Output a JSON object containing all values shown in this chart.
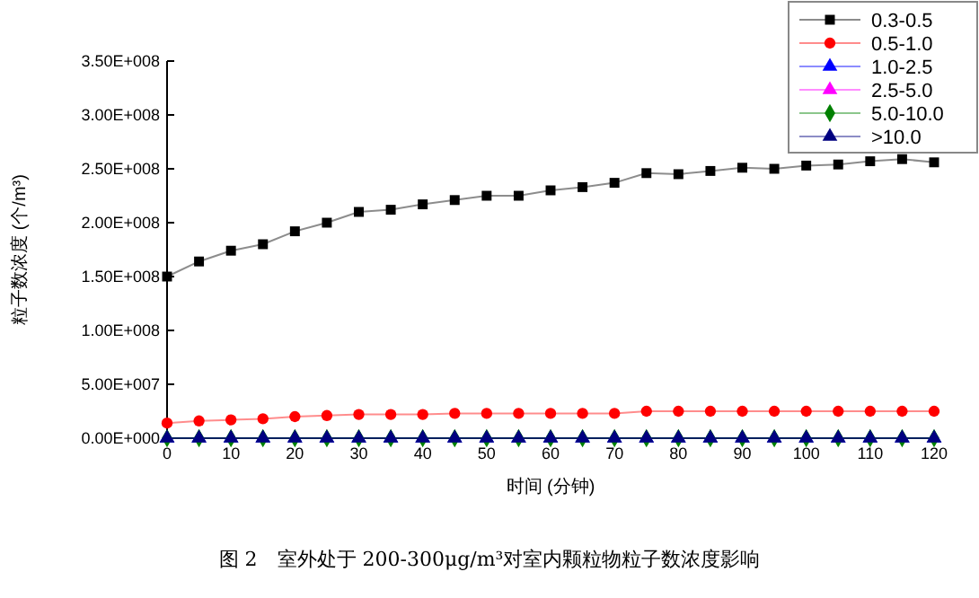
{
  "chart_data": {
    "type": "line",
    "title": "图 2　室外处于 200-300μg/m³对室内颗粒物粒子数浓度影响",
    "xlabel": "时间 (分钟)",
    "ylabel": "粒子数浓度 (个/m³)",
    "x": [
      0,
      5,
      10,
      15,
      20,
      25,
      30,
      35,
      40,
      45,
      50,
      55,
      60,
      65,
      70,
      75,
      80,
      85,
      90,
      95,
      100,
      105,
      110,
      115,
      120
    ],
    "xlim": [
      0,
      120
    ],
    "xticks": [
      0,
      10,
      20,
      30,
      40,
      50,
      60,
      70,
      80,
      90,
      100,
      110,
      120
    ],
    "ylim": [
      0,
      350000000
    ],
    "yticks": [
      {
        "value": 0,
        "label": "0.00E+000"
      },
      {
        "value": 50000000,
        "label": "5.00E+007"
      },
      {
        "value": 100000000,
        "label": "1.00E+008"
      },
      {
        "value": 150000000,
        "label": "1.50E+008"
      },
      {
        "value": 200000000,
        "label": "2.00E+008"
      },
      {
        "value": 250000000,
        "label": "2.50E+008"
      },
      {
        "value": 300000000,
        "label": "3.00E+008"
      },
      {
        "value": 350000000,
        "label": "3.50E+008"
      }
    ],
    "legend": "top right",
    "grid": false,
    "series": [
      {
        "name": "0.3-0.5",
        "color": "#000000",
        "marker": "square",
        "values": [
          150000000,
          164000000,
          174000000,
          180000000,
          192000000,
          200000000,
          210000000,
          212000000,
          217000000,
          221000000,
          225000000,
          225000000,
          230000000,
          233000000,
          237000000,
          246000000,
          245000000,
          248000000,
          251000000,
          250000000,
          253000000,
          254000000,
          257000000,
          259000000,
          256000000
        ]
      },
      {
        "name": "0.5-1.0",
        "color": "#ff0000",
        "marker": "circle",
        "values": [
          14000000,
          16000000,
          17000000,
          18000000,
          20000000,
          21000000,
          22000000,
          22000000,
          22000000,
          23000000,
          23000000,
          23000000,
          23000000,
          23000000,
          23000000,
          25000000,
          25000000,
          25000000,
          25000000,
          25000000,
          25000000,
          25000000,
          25000000,
          25000000,
          25000000
        ]
      },
      {
        "name": "1.0-2.5",
        "color": "#0000ff",
        "marker": "triangle",
        "values": [
          0,
          0,
          0,
          0,
          0,
          0,
          0,
          0,
          0,
          0,
          0,
          0,
          0,
          0,
          0,
          0,
          0,
          0,
          0,
          0,
          0,
          0,
          0,
          0,
          0
        ]
      },
      {
        "name": "2.5-5.0",
        "color": "#ff00ff",
        "marker": "triangle",
        "values": [
          null,
          null,
          null,
          null,
          null,
          null,
          null,
          null,
          null,
          null,
          null,
          null,
          null,
          null,
          null,
          null,
          null,
          null,
          null,
          null,
          null,
          null,
          null,
          null,
          null
        ]
      },
      {
        "name": "5.0-10.0",
        "color": "#008000",
        "marker": "diamond",
        "values": [
          0,
          0,
          0,
          0,
          0,
          0,
          0,
          0,
          0,
          0,
          0,
          0,
          0,
          0,
          0,
          0,
          0,
          0,
          0,
          0,
          0,
          0,
          0,
          0,
          0
        ]
      },
      {
        "name": ">10.0",
        "color": "#000080",
        "marker": "triangle",
        "values": [
          0,
          0,
          0,
          0,
          0,
          0,
          0,
          0,
          0,
          0,
          0,
          0,
          0,
          0,
          0,
          0,
          0,
          0,
          0,
          0,
          0,
          0,
          0,
          0,
          0
        ]
      }
    ]
  }
}
